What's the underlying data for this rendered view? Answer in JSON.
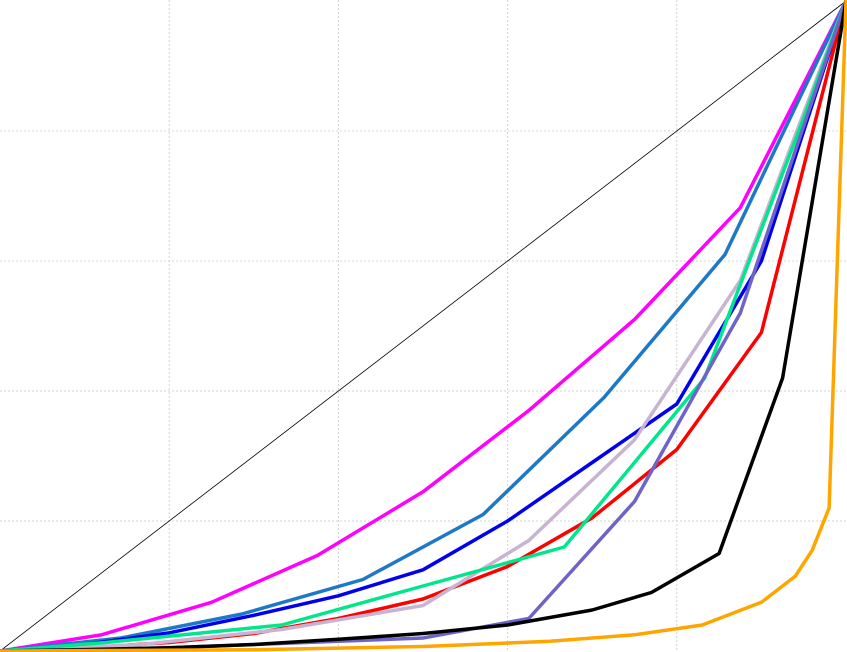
{
  "chart_data": {
    "type": "line",
    "title": "",
    "xlabel": "",
    "ylabel": "",
    "xlim": [
      0,
      1
    ],
    "ylim": [
      0,
      1
    ],
    "grid": true,
    "legend": "none",
    "x_gridlines": [
      0.2,
      0.4,
      0.6,
      0.8
    ],
    "y_gridlines": [
      0.2,
      0.4,
      0.6,
      0.8
    ],
    "reference_line": {
      "x": [
        0,
        1
      ],
      "y": [
        0,
        1
      ],
      "color": "#000000"
    },
    "series": [
      {
        "color": "#ff00ff",
        "x": [
          0,
          0.12,
          0.25,
          0.375,
          0.5,
          0.625,
          0.75,
          0.875,
          1
        ],
        "y": [
          0,
          0.025,
          0.075,
          0.147,
          0.245,
          0.37,
          0.51,
          0.682,
          1
        ]
      },
      {
        "color": "#1e78c8",
        "x": [
          0,
          0.143,
          0.286,
          0.429,
          0.571,
          0.714,
          0.857,
          1
        ],
        "y": [
          0,
          0.02,
          0.057,
          0.11,
          0.21,
          0.39,
          0.61,
          1
        ]
      },
      {
        "color": "#0000ee",
        "x": [
          0,
          0.1,
          0.2,
          0.3,
          0.4,
          0.5,
          0.6,
          0.7,
          0.8,
          0.9,
          1
        ],
        "y": [
          0,
          0.01,
          0.028,
          0.055,
          0.085,
          0.125,
          0.2,
          0.29,
          0.38,
          0.6,
          1
        ]
      },
      {
        "color": "#ff0000",
        "x": [
          0,
          0.1,
          0.2,
          0.3,
          0.4,
          0.5,
          0.6,
          0.7,
          0.8,
          0.9,
          1
        ],
        "y": [
          0,
          0.005,
          0.013,
          0.027,
          0.05,
          0.08,
          0.13,
          0.205,
          0.31,
          0.49,
          1
        ]
      },
      {
        "color": "#c8b4d2",
        "x": [
          0,
          0.167,
          0.333,
          0.5,
          0.625,
          0.75,
          0.875,
          1
        ],
        "y": [
          0,
          0.01,
          0.033,
          0.07,
          0.17,
          0.325,
          0.57,
          1
        ]
      },
      {
        "color": "#00e68c",
        "x": [
          0,
          0.125,
          0.333,
          0.5,
          0.667,
          0.833,
          0.95,
          1
        ],
        "y": [
          0,
          0.013,
          0.04,
          0.1,
          0.16,
          0.42,
          0.82,
          1
        ]
      },
      {
        "color": "#6e64c8",
        "x": [
          0,
          0.1,
          0.2,
          0.3,
          0.4,
          0.5,
          0.625,
          0.75,
          0.875,
          1
        ],
        "y": [
          0,
          0.0025,
          0.005,
          0.01,
          0.015,
          0.02,
          0.05,
          0.23,
          0.52,
          1
        ]
      },
      {
        "color": "#000000",
        "x": [
          0,
          0.1,
          0.2,
          0.3,
          0.4,
          0.5,
          0.6,
          0.7,
          0.77,
          0.85,
          0.925,
          1
        ],
        "y": [
          0,
          0.002,
          0.005,
          0.01,
          0.018,
          0.027,
          0.04,
          0.063,
          0.09,
          0.15,
          0.42,
          1
        ]
      },
      {
        "color": "#ffa500",
        "x": [
          0,
          0.3,
          0.5,
          0.65,
          0.75,
          0.83,
          0.9,
          0.94,
          0.96,
          0.98,
          1
        ],
        "y": [
          0,
          0.002,
          0.007,
          0.015,
          0.025,
          0.04,
          0.075,
          0.115,
          0.155,
          0.22,
          1
        ]
      }
    ]
  }
}
